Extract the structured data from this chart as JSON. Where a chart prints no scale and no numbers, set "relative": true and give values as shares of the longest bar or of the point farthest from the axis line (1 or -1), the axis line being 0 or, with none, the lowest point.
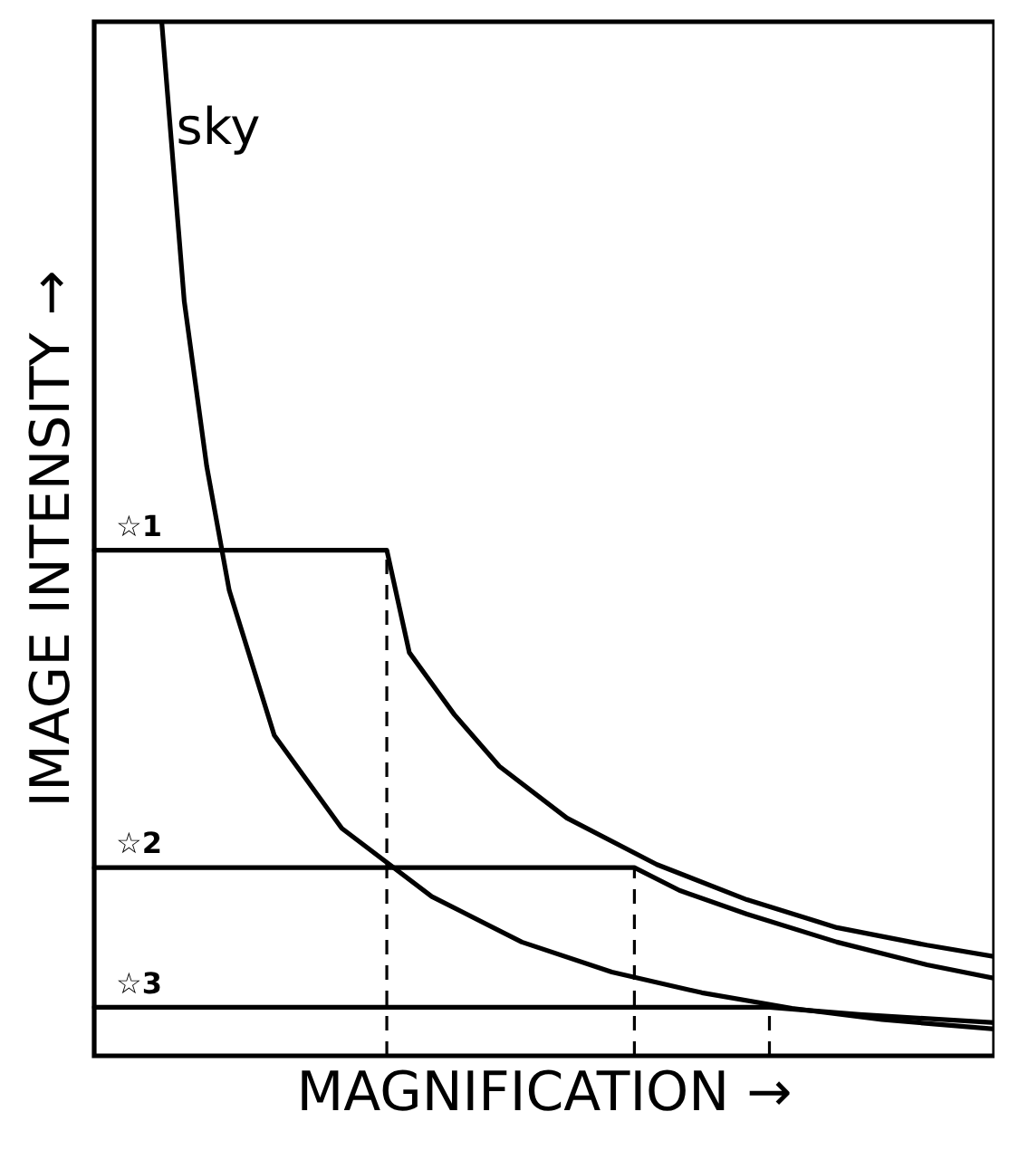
{
  "chart_data": {
    "type": "line",
    "relative": true,
    "xlabel": "MAGNIFICATION →",
    "ylabel": "IMAGE INTENSITY →",
    "legend": false,
    "grid": false,
    "marker": "none",
    "line_style": "solid",
    "categories": [
      null,
      null,
      null,
      null,
      null,
      null,
      null,
      null,
      null,
      null,
      null,
      null,
      null,
      null,
      null,
      null,
      null,
      null,
      null,
      null,
      null,
      null,
      null,
      null,
      null,
      null,
      null,
      null,
      null,
      null,
      null,
      null,
      null,
      null,
      null,
      null,
      null,
      null,
      null,
      null,
      null
    ],
    "series": [
      {
        "name": "sky",
        "color": "#000000",
        "values": [
          null,
          null,
          null,
          1,
          0.73,
          0.57,
          0.45,
          null,
          0.31,
          null,
          null,
          0.22,
          null,
          null,
          null,
          0.154,
          null,
          null,
          null,
          0.11,
          null,
          null,
          null,
          0.081,
          null,
          null,
          null,
          0.061,
          null,
          null,
          null,
          0.046,
          null,
          null,
          null,
          0.035,
          null,
          null,
          null,
          null,
          0.026
        ]
      },
      {
        "name": "☆1",
        "color": "#000000",
        "values": [
          0.489,
          null,
          null,
          null,
          null,
          null,
          null,
          null,
          null,
          null,
          null,
          null,
          null,
          0.489,
          0.39,
          null,
          0.33,
          null,
          0.28,
          null,
          null,
          0.23,
          null,
          null,
          null,
          0.185,
          null,
          null,
          null,
          0.151,
          null,
          null,
          null,
          0.124,
          null,
          null,
          null,
          0.107,
          null,
          null,
          0.096
        ]
      },
      {
        "name": "☆2",
        "color": "#000000",
        "values": [
          0.182,
          null,
          null,
          null,
          null,
          null,
          null,
          null,
          null,
          null,
          null,
          null,
          null,
          null,
          null,
          null,
          null,
          null,
          null,
          null,
          null,
          null,
          null,
          null,
          0.182,
          null,
          0.16,
          null,
          null,
          0.137,
          null,
          null,
          null,
          0.11,
          null,
          null,
          null,
          0.088,
          null,
          null,
          0.075
        ]
      },
      {
        "name": "☆3",
        "color": "#000000",
        "values": [
          0.047,
          null,
          null,
          null,
          null,
          null,
          null,
          null,
          null,
          null,
          null,
          null,
          null,
          null,
          null,
          null,
          null,
          null,
          null,
          null,
          null,
          null,
          null,
          null,
          null,
          null,
          null,
          null,
          null,
          null,
          0.047,
          null,
          null,
          null,
          0.04,
          null,
          null,
          null,
          null,
          null,
          0.032
        ]
      }
    ]
  }
}
